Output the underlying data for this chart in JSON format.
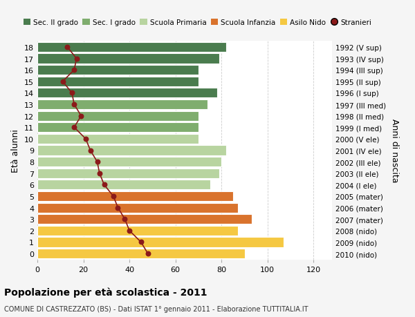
{
  "ages": [
    18,
    17,
    16,
    15,
    14,
    13,
    12,
    11,
    10,
    9,
    8,
    7,
    6,
    5,
    4,
    3,
    2,
    1,
    0
  ],
  "bar_values": [
    82,
    79,
    70,
    70,
    78,
    74,
    70,
    70,
    70,
    82,
    80,
    79,
    75,
    85,
    87,
    93,
    87,
    107,
    90
  ],
  "stranieri": [
    13,
    17,
    16,
    11,
    15,
    16,
    19,
    16,
    21,
    23,
    26,
    27,
    29,
    33,
    35,
    38,
    40,
    45,
    48
  ],
  "bar_colors": [
    "#4a7c4e",
    "#4a7c4e",
    "#4a7c4e",
    "#4a7c4e",
    "#4a7c4e",
    "#7fad6e",
    "#7fad6e",
    "#7fad6e",
    "#b8d4a0",
    "#b8d4a0",
    "#b8d4a0",
    "#b8d4a0",
    "#b8d4a0",
    "#d9732d",
    "#d9732d",
    "#d9732d",
    "#f5c842",
    "#f5c842",
    "#f5c842"
  ],
  "right_labels_by_age": {
    "18": "1992 (V sup)",
    "17": "1993 (IV sup)",
    "16": "1994 (III sup)",
    "15": "1995 (II sup)",
    "14": "1996 (I sup)",
    "13": "1997 (III med)",
    "12": "1998 (II med)",
    "11": "1999 (I med)",
    "10": "2000 (V ele)",
    "9": "2001 (IV ele)",
    "8": "2002 (III ele)",
    "7": "2003 (II ele)",
    "6": "2004 (I ele)",
    "5": "2005 (mater)",
    "4": "2006 (mater)",
    "3": "2007 (mater)",
    "2": "2008 (nido)",
    "1": "2009 (nido)",
    "0": "2010 (nido)"
  },
  "legend_labels": [
    "Sec. II grado",
    "Sec. I grado",
    "Scuola Primaria",
    "Scuola Infanzia",
    "Asilo Nido",
    "Stranieri"
  ],
  "legend_colors": [
    "#4a7c4e",
    "#7fad6e",
    "#b8d4a0",
    "#d9732d",
    "#f5c842",
    "#8b1a1a"
  ],
  "title": "Popolazione per età scolastica - 2011",
  "subtitle": "COMUNE DI CASTREZZATO (BS) - Dati ISTAT 1° gennaio 2011 - Elaborazione TUTTITALIA.IT",
  "ylabel": "Età alunni",
  "right_ylabel": "Anni di nascita",
  "xlabel_values": [
    0,
    20,
    40,
    60,
    80,
    100,
    120
  ],
  "xlim": [
    0,
    128
  ],
  "ylim_min": -0.55,
  "ylim_max": 18.55,
  "background_color": "#f5f5f5",
  "bar_background": "#ffffff",
  "grid_color": "#cccccc",
  "stranieri_color": "#8b1a1a"
}
